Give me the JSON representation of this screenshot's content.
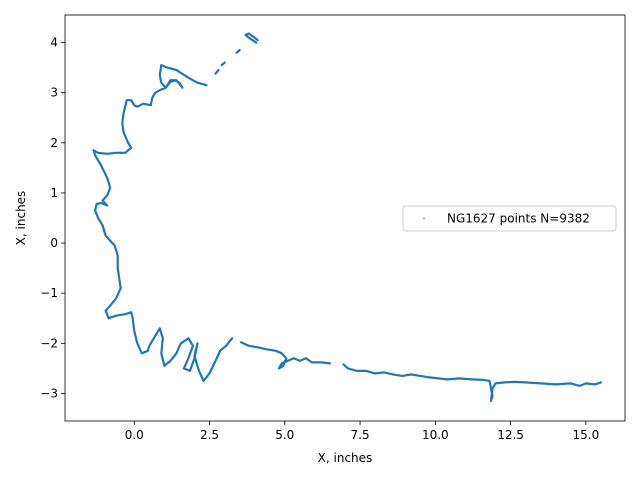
{
  "chart_data": {
    "type": "scatter",
    "title": "",
    "xlabel": "X, inches",
    "ylabel": "X, inches",
    "xlim": [
      -2.3,
      16.3
    ],
    "ylim": [
      -3.55,
      4.55
    ],
    "xticks": [
      0.0,
      2.5,
      5.0,
      7.5,
      10.0,
      12.5,
      15.0
    ],
    "xtick_labels": [
      "0.0",
      "2.5",
      "5.0",
      "7.5",
      "10.0",
      "12.5",
      "15.0"
    ],
    "yticks": [
      -3,
      -2,
      -1,
      0,
      1,
      2,
      3,
      4
    ],
    "ytick_labels": [
      "−3",
      "−2",
      "−1",
      "0",
      "1",
      "2",
      "3",
      "4"
    ],
    "grid": false,
    "legend_position": "center-right",
    "series": [
      {
        "name": "NG1627 points N=9382",
        "color": "#1f77b4",
        "marker": "dot",
        "segments": [
          [
            [
              4.1,
              4.05
            ],
            [
              3.95,
              4.12
            ],
            [
              3.8,
              4.18
            ],
            [
              3.7,
              4.15
            ],
            [
              3.85,
              4.08
            ],
            [
              4.05,
              4.0
            ]
          ],
          [
            [
              3.5,
              3.85
            ],
            [
              3.4,
              3.8
            ]
          ],
          [
            [
              3.0,
              3.6
            ],
            [
              2.9,
              3.55
            ]
          ],
          [
            [
              2.8,
              3.45
            ],
            [
              2.7,
              3.38
            ]
          ],
          [
            [
              2.4,
              3.15
            ],
            [
              2.1,
              3.2
            ],
            [
              1.8,
              3.3
            ],
            [
              1.4,
              3.45
            ],
            [
              1.1,
              3.5
            ],
            [
              0.9,
              3.55
            ],
            [
              0.85,
              3.35
            ],
            [
              0.9,
              3.2
            ],
            [
              1.05,
              3.1
            ],
            [
              1.2,
              3.22
            ],
            [
              1.4,
              3.25
            ],
            [
              1.6,
              3.1
            ],
            [
              1.5,
              3.2
            ],
            [
              1.35,
              3.25
            ],
            [
              1.2,
              3.25
            ],
            [
              1.05,
              3.1
            ],
            [
              0.85,
              3.05
            ],
            [
              0.7,
              3.0
            ],
            [
              0.6,
              2.9
            ],
            [
              0.55,
              2.75
            ],
            [
              0.3,
              2.78
            ],
            [
              0.1,
              2.72
            ],
            [
              0.0,
              2.75
            ],
            [
              -0.1,
              2.85
            ],
            [
              -0.25,
              2.85
            ],
            [
              -0.35,
              2.6
            ],
            [
              -0.4,
              2.4
            ],
            [
              -0.35,
              2.2
            ],
            [
              -0.2,
              2.0
            ],
            [
              -0.1,
              1.9
            ],
            [
              -0.3,
              1.8
            ],
            [
              -0.6,
              1.8
            ],
            [
              -0.9,
              1.78
            ],
            [
              -1.2,
              1.8
            ],
            [
              -1.35,
              1.85
            ],
            [
              -1.3,
              1.75
            ],
            [
              -1.1,
              1.55
            ],
            [
              -0.9,
              1.3
            ],
            [
              -0.8,
              1.1
            ],
            [
              -0.9,
              0.95
            ],
            [
              -1.05,
              0.85
            ],
            [
              -0.9,
              0.75
            ],
            [
              -1.1,
              0.8
            ],
            [
              -1.25,
              0.78
            ],
            [
              -1.3,
              0.65
            ],
            [
              -1.2,
              0.5
            ],
            [
              -1.05,
              0.35
            ],
            [
              -0.95,
              0.15
            ],
            [
              -0.8,
              0.05
            ],
            [
              -0.65,
              -0.05
            ],
            [
              -0.55,
              -0.25
            ],
            [
              -0.55,
              -0.5
            ],
            [
              -0.5,
              -0.7
            ],
            [
              -0.45,
              -0.9
            ],
            [
              -0.6,
              -1.1
            ],
            [
              -0.8,
              -1.25
            ],
            [
              -0.95,
              -1.35
            ],
            [
              -0.85,
              -1.5
            ],
            [
              -0.6,
              -1.45
            ],
            [
              -0.3,
              -1.42
            ],
            [
              -0.1,
              -1.38
            ],
            [
              -0.05,
              -1.5
            ],
            [
              0.0,
              -1.75
            ],
            [
              0.1,
              -2.0
            ],
            [
              0.25,
              -2.2
            ],
            [
              0.45,
              -2.15
            ],
            [
              0.5,
              -2.05
            ],
            [
              0.7,
              -1.85
            ],
            [
              0.85,
              -1.7
            ],
            [
              0.95,
              -1.9
            ],
            [
              0.9,
              -2.2
            ],
            [
              1.0,
              -2.45
            ],
            [
              1.2,
              -2.35
            ],
            [
              1.4,
              -2.2
            ],
            [
              1.55,
              -2.0
            ],
            [
              1.8,
              -1.9
            ],
            [
              1.95,
              -2.05
            ],
            [
              1.8,
              -2.3
            ],
            [
              1.65,
              -2.5
            ],
            [
              1.85,
              -2.55
            ],
            [
              2.0,
              -2.3
            ],
            [
              2.1,
              -2.0
            ],
            [
              2.0,
              -2.25
            ],
            [
              2.15,
              -2.55
            ],
            [
              2.3,
              -2.75
            ],
            [
              2.5,
              -2.6
            ],
            [
              2.7,
              -2.35
            ],
            [
              2.85,
              -2.15
            ],
            [
              2.75,
              -2.3
            ],
            [
              2.85,
              -2.15
            ],
            [
              3.05,
              -2.05
            ],
            [
              3.25,
              -1.9
            ]
          ],
          [
            [
              3.55,
              -1.98
            ],
            [
              3.8,
              -2.05
            ],
            [
              4.1,
              -2.08
            ],
            [
              4.4,
              -2.12
            ],
            [
              4.7,
              -2.15
            ],
            [
              4.9,
              -2.2
            ],
            [
              5.05,
              -2.3
            ],
            [
              4.95,
              -2.45
            ],
            [
              4.8,
              -2.5
            ],
            [
              4.9,
              -2.4
            ],
            [
              5.1,
              -2.35
            ],
            [
              5.3,
              -2.3
            ],
            [
              5.5,
              -2.35
            ],
            [
              5.7,
              -2.3
            ],
            [
              5.9,
              -2.38
            ],
            [
              6.2,
              -2.38
            ],
            [
              6.5,
              -2.4
            ]
          ],
          [
            [
              6.95,
              -2.42
            ],
            [
              7.1,
              -2.5
            ],
            [
              7.4,
              -2.55
            ],
            [
              7.7,
              -2.55
            ],
            [
              8.0,
              -2.6
            ],
            [
              8.3,
              -2.58
            ],
            [
              8.6,
              -2.62
            ],
            [
              8.9,
              -2.65
            ],
            [
              9.2,
              -2.62
            ],
            [
              9.5,
              -2.65
            ],
            [
              9.8,
              -2.68
            ],
            [
              10.1,
              -2.7
            ],
            [
              10.4,
              -2.72
            ],
            [
              10.8,
              -2.7
            ],
            [
              11.2,
              -2.72
            ],
            [
              11.6,
              -2.73
            ],
            [
              11.8,
              -2.75
            ],
            [
              11.9,
              -3.05
            ],
            [
              11.85,
              -3.15
            ],
            [
              11.9,
              -2.9
            ],
            [
              12.0,
              -2.8
            ],
            [
              12.3,
              -2.78
            ],
            [
              12.6,
              -2.77
            ],
            [
              13.0,
              -2.78
            ],
            [
              13.5,
              -2.8
            ],
            [
              14.0,
              -2.82
            ],
            [
              14.5,
              -2.8
            ],
            [
              14.8,
              -2.85
            ],
            [
              15.0,
              -2.8
            ],
            [
              15.3,
              -2.82
            ],
            [
              15.5,
              -2.78
            ]
          ]
        ]
      }
    ]
  }
}
